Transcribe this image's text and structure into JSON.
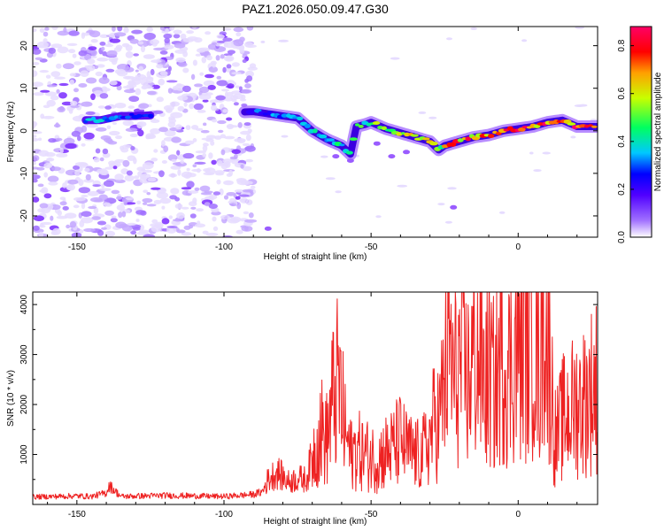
{
  "title": "PAZ1.2026.050.09.47.G30",
  "colorbar": {
    "label": "Normalized spectral amplitude",
    "range": [
      0.0,
      0.88
    ],
    "ticks": [
      0.0,
      0.2,
      0.4,
      0.6,
      0.8
    ],
    "tick_labels": [
      "0.0",
      "0.2",
      "0.4",
      "0.6",
      "0.8"
    ],
    "colors": [
      "#ffffff",
      "#7b00ff",
      "#0000ff",
      "#00ffff",
      "#00ff00",
      "#ffff00",
      "#ff0000",
      "#ff0066"
    ]
  },
  "chart_data": [
    {
      "type": "heatmap",
      "xlabel": "Height of straight line (km)",
      "ylabel": "Frequency (Hz)",
      "xlim": [
        -165,
        27
      ],
      "ylim": [
        -25,
        24.5
      ],
      "x_ticks": [
        -150,
        -100,
        -50,
        0
      ],
      "x_tick_labels": [
        "-150",
        "-100",
        "-50",
        "0"
      ],
      "y_ticks": [
        -20,
        -10,
        0,
        10,
        20
      ],
      "y_tick_labels": [
        "-20",
        "-10",
        "0",
        "10",
        "20"
      ],
      "noise_region_x": [
        -165,
        -90
      ],
      "ridge": {
        "description_values": "Doppler frequency track (Hz) vs height (km) and peak normalized amplitude",
        "x": [
          -142,
          -135,
          -130,
          -90,
          -85,
          -80,
          -75,
          -70,
          -65,
          -60,
          -57,
          -55,
          -52,
          -50,
          -45,
          -40,
          -35,
          -30,
          -27,
          -25,
          -20,
          -15,
          -10,
          -5,
          0,
          5,
          10,
          15,
          20,
          27
        ],
        "freq": [
          2.5,
          3.5,
          3.5,
          4.5,
          4.0,
          3.5,
          3.0,
          0.0,
          -2.0,
          -3.5,
          -5.5,
          1.0,
          1.5,
          2.0,
          0.5,
          -0.5,
          -1.5,
          -2.5,
          -4.5,
          -3.5,
          -2.5,
          -1.5,
          -1.0,
          0.0,
          0.5,
          1.0,
          2.0,
          2.5,
          1.0,
          1.0
        ],
        "amplitude": [
          0.35,
          0.3,
          0.25,
          0.3,
          0.3,
          0.35,
          0.4,
          0.45,
          0.45,
          0.45,
          0.4,
          0.45,
          0.5,
          0.5,
          0.55,
          0.6,
          0.65,
          0.7,
          0.55,
          0.65,
          0.75,
          0.75,
          0.8,
          0.8,
          0.8,
          0.8,
          0.8,
          0.8,
          0.8,
          0.75
        ]
      }
    },
    {
      "type": "line",
      "xlabel": "Height of straight line (km)",
      "ylabel": "SNR (10 * v/v)",
      "xlim": [
        -165,
        27
      ],
      "ylim": [
        0,
        4250
      ],
      "x_ticks": [
        -150,
        -100,
        -50,
        0
      ],
      "x_tick_labels": [
        "-150",
        "-100",
        "-50",
        "0"
      ],
      "y_ticks": [
        1000,
        2000,
        3000,
        4000
      ],
      "y_tick_labels": [
        "1000",
        "2000",
        "3000",
        "4000"
      ],
      "color": "#ee2222",
      "series": [
        {
          "name": "SNR",
          "x": [
            -165,
            -150,
            -145,
            -140,
            -139,
            -135,
            -120,
            -100,
            -95,
            -90,
            -87,
            -85,
            -82,
            -80,
            -78,
            -75,
            -72,
            -70,
            -67,
            -65,
            -63,
            -61,
            -59,
            -57,
            -55,
            -52,
            -50,
            -48,
            -45,
            -43,
            -40,
            -38,
            -35,
            -33,
            -30,
            -28,
            -27,
            -25,
            -23,
            -22,
            -20,
            -17,
            -15,
            -13,
            -11,
            -10,
            -8,
            -6,
            -5,
            -3,
            -1,
            0,
            2,
            4,
            6,
            7,
            8,
            9,
            10,
            11,
            12,
            13,
            15,
            18,
            20,
            23,
            25,
            27
          ],
          "values": [
            150,
            170,
            160,
            230,
            380,
            160,
            180,
            160,
            180,
            200,
            250,
            500,
            650,
            550,
            450,
            520,
            500,
            950,
            1500,
            1300,
            2100,
            2450,
            1500,
            1000,
            1100,
            1000,
            950,
            900,
            1050,
            1100,
            1300,
            1100,
            1000,
            950,
            1300,
            1800,
            1600,
            2500,
            3200,
            2400,
            2800,
            2500,
            3000,
            2900,
            2400,
            2700,
            2300,
            2900,
            3000,
            2700,
            3100,
            3200,
            3300,
            3400,
            3500,
            2500,
            3600,
            4200,
            2800,
            3000,
            1500,
            1300,
            1700,
            1900,
            2000,
            2100,
            2300,
            2400
          ]
        }
      ]
    }
  ]
}
